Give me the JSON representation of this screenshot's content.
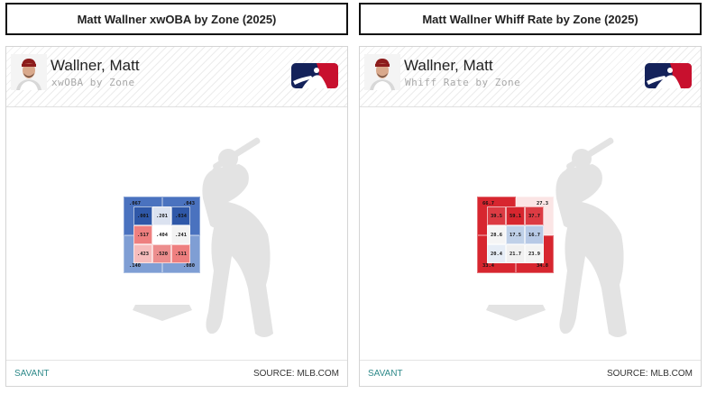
{
  "panels": [
    {
      "title": "Matt Wallner xwOBA by Zone (2025)",
      "player_name": "Wallner, Matt",
      "subtitle": "xwOBA by Zone",
      "footer_left": "SAVANT",
      "footer_right": "SOURCE: MLB.COM",
      "zones": {
        "outer": [
          ".067",
          ".043",
          ".140",
          ".080"
        ],
        "inner": [
          ".001",
          ".201",
          ".034",
          ".517",
          ".404",
          ".241",
          ".423",
          ".520",
          ".511"
        ]
      },
      "colors": {
        "outer": [
          "#4a72bf",
          "#4a72bf",
          "#7f9ed4",
          "#7f9ed4"
        ],
        "inner": [
          "#2f58a8",
          "#dbe2f0",
          "#2f58a8",
          "#ee7f7f",
          "#ffffff",
          "#f3f3f3",
          "#f6bcbc",
          "#ec8d8d",
          "#ee7f7f"
        ]
      }
    },
    {
      "title": "Matt Wallner Whiff Rate by Zone (2025)",
      "player_name": "Wallner, Matt",
      "subtitle": "Whiff Rate by Zone",
      "footer_left": "SAVANT",
      "footer_right": "SOURCE: MLB.COM",
      "zones": {
        "outer": [
          "66.7",
          "27.3",
          "33.4",
          "34.8"
        ],
        "inner": [
          "39.5",
          "59.1",
          "37.7",
          "28.6",
          "17.5",
          "16.7",
          "20.4",
          "21.7",
          "23.9"
        ]
      },
      "colors": {
        "outer": [
          "#d7262f",
          "#fbe5e5",
          "#d7262f",
          "#d7262f"
        ],
        "inner": [
          "#dc3b43",
          "#d7262f",
          "#dc3b43",
          "#f5f5f5",
          "#bfd0e8",
          "#b7c9e6",
          "#e6edf6",
          "#f0f0f0",
          "#f3f3f3"
        ]
      }
    }
  ],
  "icons": {
    "headshot": "player-headshot",
    "logo": "mlb-logo"
  }
}
